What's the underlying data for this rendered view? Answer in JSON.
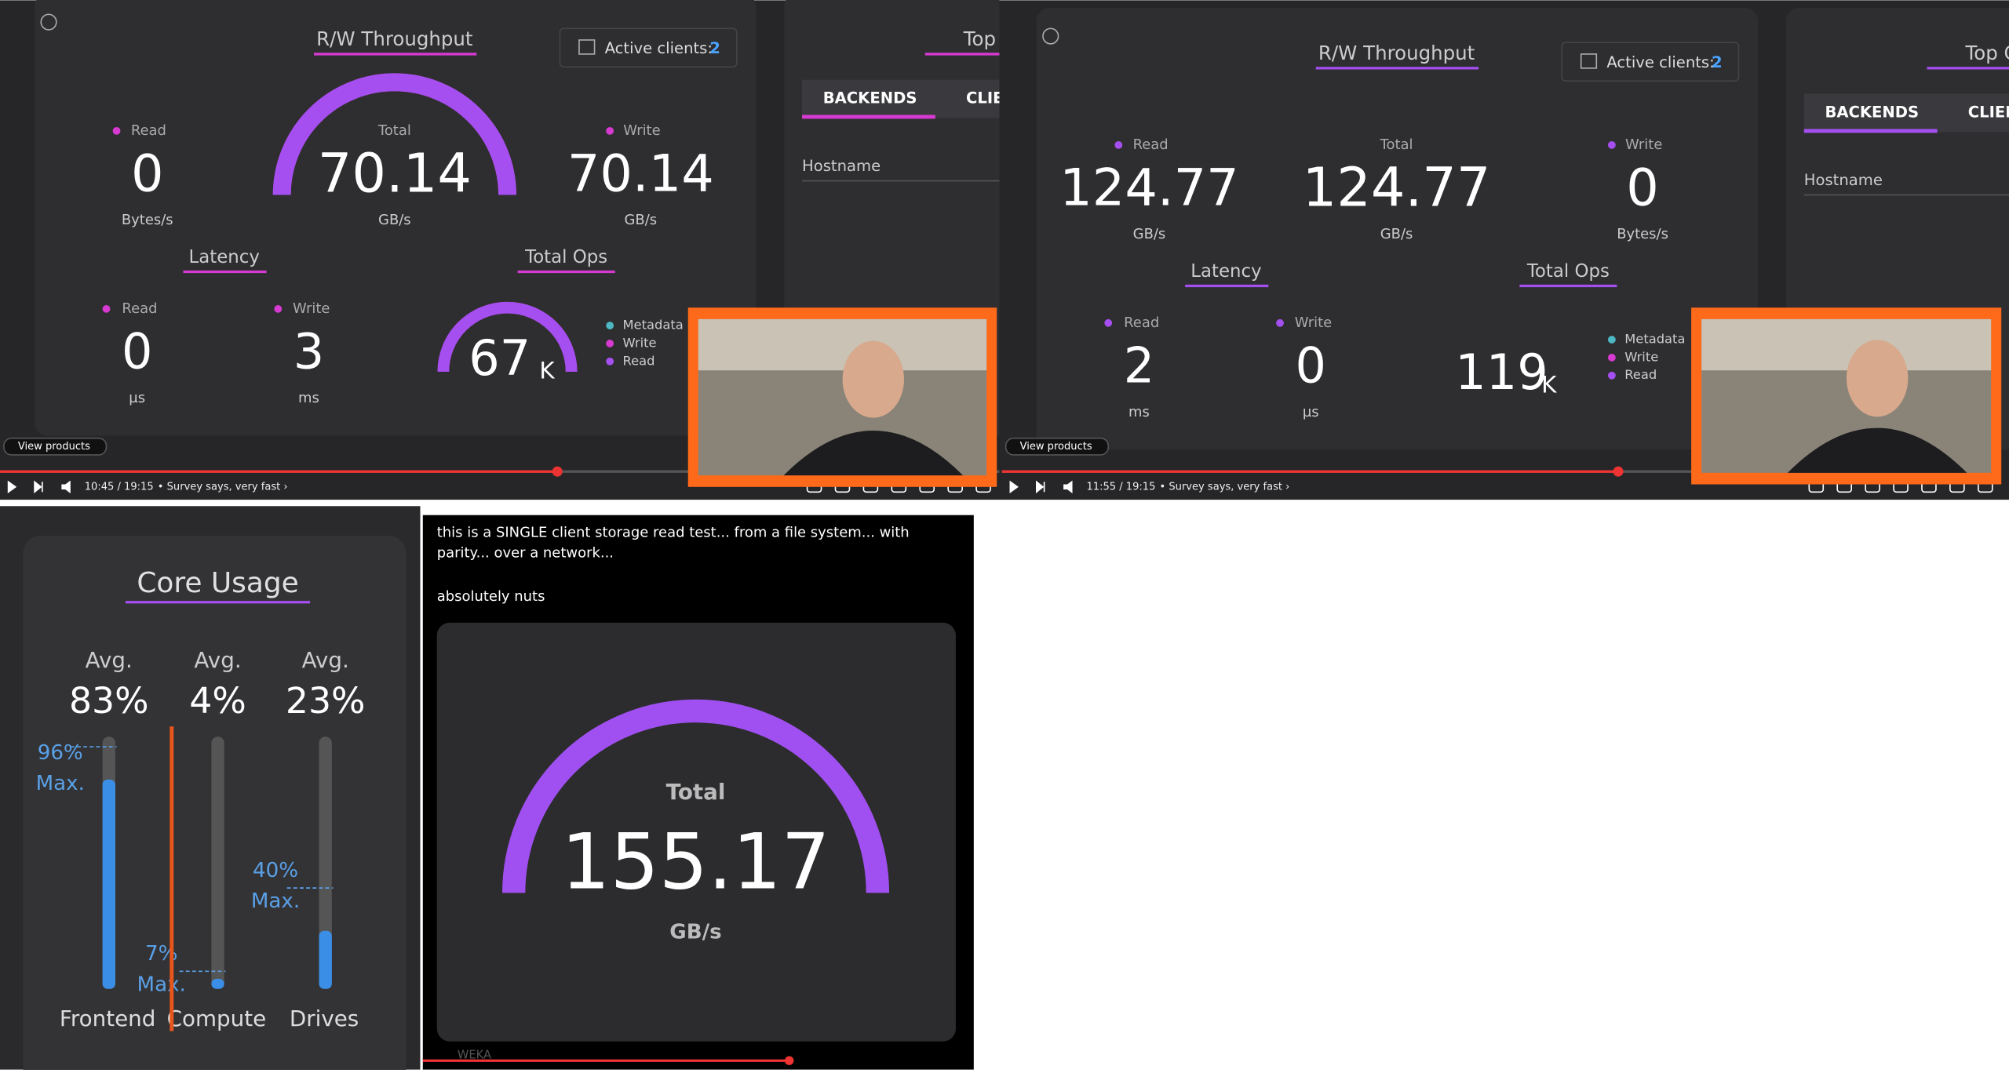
{
  "panels": [
    {
      "throughput_title": "R/W Throughput",
      "active_clients_label": "Active clients:",
      "active_clients": 2,
      "read_label": "Read",
      "read_value": 0,
      "read_unit": "Bytes/s",
      "total_label": "Total",
      "total_value": 70.14,
      "total_unit": "GB/s",
      "write_label": "Write",
      "write_value": 70.14,
      "write_unit": "GB/s",
      "latency_title": "Latency",
      "lat_read_label": "Read",
      "lat_read_value": 0,
      "lat_read_unit": "µs",
      "lat_write_label": "Write",
      "lat_write_value": 3,
      "lat_write_unit": "ms",
      "ops_title": "Total Ops",
      "ops_value": 67,
      "ops_suffix": "K",
      "ops_legend": [
        "Metadata",
        "Write",
        "Read"
      ],
      "top_title": "Top Cons",
      "tabs": [
        "BACKENDS",
        "CLIEI"
      ],
      "hostname": "Hostname",
      "view_products": "View products",
      "time": "10:45 / 19:15",
      "chapter": "• Survey says, very fast ›"
    },
    {
      "throughput_title": "R/W Throughput",
      "active_clients_label": "Active clients:",
      "active_clients": 2,
      "read_label": "Read",
      "read_value": 124.77,
      "read_unit": "GB/s",
      "total_label": "Total",
      "total_value": 124.77,
      "total_unit": "GB/s",
      "write_label": "Write",
      "write_value": 0,
      "write_unit": "Bytes/s",
      "latency_title": "Latency",
      "lat_read_label": "Read",
      "lat_read_value": 2,
      "lat_read_unit": "ms",
      "lat_write_label": "Write",
      "lat_write_value": 0,
      "lat_write_unit": "µs",
      "ops_title": "Total Ops",
      "ops_value": 119,
      "ops_suffix": "K",
      "ops_legend": [
        "Metadata",
        "Write",
        "Read"
      ],
      "top_title": "Top Cons",
      "tabs": [
        "BACKENDS",
        "CLIEI"
      ],
      "hostname": "Hostname",
      "view_products": "View products",
      "time": "11:55 / 19:15",
      "chapter": "• Survey says, very fast ›"
    }
  ],
  "core_usage": {
    "title": "Core Usage",
    "columns": [
      {
        "avg_label": "Avg.",
        "avg": {
          "value": 83,
          "label": "83%"
        },
        "max": {
          "value": 96,
          "label": "96%"
        },
        "max_label": "Max.",
        "name": "Frontend"
      },
      {
        "avg_label": "Avg.",
        "avg": {
          "value": 4,
          "label": "4%"
        },
        "max": {
          "value": 7,
          "label": "7%"
        },
        "max_label": "Max.",
        "name": "Compute"
      },
      {
        "avg_label": "Avg.",
        "avg": {
          "value": 23,
          "label": "23%"
        },
        "max": {
          "value": 40,
          "label": "40%"
        },
        "max_label": "Max.",
        "name": "Drives"
      }
    ]
  },
  "post": {
    "text": "this is a SINGLE client storage read test... from a file system... with parity... over a network...",
    "text2": "absolutely nuts",
    "total_label": "Total",
    "total_value": 155.17,
    "total_unit": "GB/s",
    "footer": "WEKA"
  }
}
